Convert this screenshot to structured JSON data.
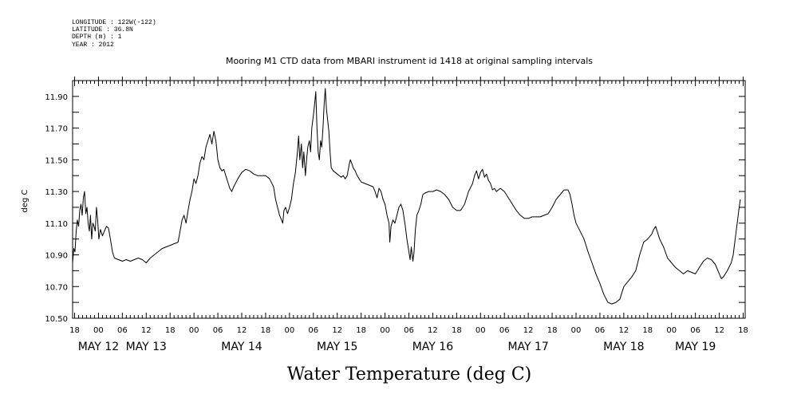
{
  "header": {
    "longitude": "LONGITUDE : 122W(-122)",
    "latitude": "LATITUDE : 36.8N",
    "depth": "DEPTH (m) : 1",
    "year": "YEAR : 2012"
  },
  "chart_data": {
    "type": "line",
    "title": "Mooring M1 CTD data from MBARI instrument id 1418 at original sampling intervals",
    "xlabel": "Water Temperature (deg C)",
    "ylabel": "deg C",
    "ylim": [
      10.5,
      12.0
    ],
    "y_ticks": [
      10.5,
      10.6,
      10.7,
      10.8,
      10.9,
      11.0,
      11.1,
      11.2,
      11.3,
      11.4,
      11.5,
      11.6,
      11.7,
      11.8,
      11.9,
      12.0
    ],
    "y_tick_labels": [
      "10.50",
      "10.70",
      "10.90",
      "11.10",
      "11.30",
      "11.50",
      "11.70",
      "11.90"
    ],
    "y_tick_label_values": [
      10.5,
      10.7,
      10.9,
      11.1,
      11.3,
      11.5,
      11.7,
      11.9
    ],
    "x_unit": "hours since May 12 00:00",
    "xlim": [
      -6.5,
      162.5
    ],
    "hour_ticks": [
      -6,
      0,
      6,
      12,
      18,
      24,
      30,
      36,
      42,
      48,
      54,
      60,
      66,
      72,
      78,
      84,
      90,
      96,
      102,
      108,
      114,
      120,
      126,
      132,
      138,
      144,
      150,
      156,
      162
    ],
    "hour_tick_labels": [
      "18",
      "00",
      "06",
      "12",
      "18",
      "00",
      "06",
      "12",
      "18",
      "00",
      "06",
      "12",
      "18",
      "00",
      "06",
      "12",
      "18",
      "00",
      "06",
      "12",
      "18",
      "00",
      "06",
      "12",
      "18",
      "00",
      "06",
      "12",
      "18"
    ],
    "date_labels": [
      {
        "label": "MAY 12",
        "hour": 0
      },
      {
        "label": "MAY 13",
        "hour": 12
      },
      {
        "label": "MAY 14",
        "hour": 36
      },
      {
        "label": "MAY 15",
        "hour": 60
      },
      {
        "label": "MAY 16",
        "hour": 84
      },
      {
        "label": "MAY 17",
        "hour": 108
      },
      {
        "label": "MAY 18",
        "hour": 132
      },
      {
        "label": "MAY 19",
        "hour": 150
      }
    ],
    "series": [
      {
        "color": "#000000",
        "points": [
          [
            -6.5,
            10.85
          ],
          [
            -6.2,
            10.94
          ],
          [
            -5.9,
            10.92
          ],
          [
            -5.6,
            11.05
          ],
          [
            -5.3,
            11.12
          ],
          [
            -5.0,
            11.08
          ],
          [
            -4.7,
            11.18
          ],
          [
            -4.4,
            11.22
          ],
          [
            -4.1,
            11.15
          ],
          [
            -3.8,
            11.26
          ],
          [
            -3.5,
            11.3
          ],
          [
            -3.2,
            11.16
          ],
          [
            -2.9,
            11.2
          ],
          [
            -2.6,
            11.1
          ],
          [
            -2.3,
            11.05
          ],
          [
            -2.0,
            11.15
          ],
          [
            -1.7,
            11.0
          ],
          [
            -1.4,
            11.1
          ],
          [
            -1.1,
            11.08
          ],
          [
            -0.8,
            11.05
          ],
          [
            -0.5,
            11.2
          ],
          [
            -0.2,
            11.12
          ],
          [
            0.1,
            11.0
          ],
          [
            0.5,
            11.06
          ],
          [
            1.0,
            11.02
          ],
          [
            1.5,
            11.05
          ],
          [
            2.0,
            11.08
          ],
          [
            2.5,
            11.07
          ],
          [
            3.0,
            11.0
          ],
          [
            3.5,
            10.92
          ],
          [
            4.0,
            10.88
          ],
          [
            5.0,
            10.87
          ],
          [
            6.0,
            10.86
          ],
          [
            7.0,
            10.87
          ],
          [
            8.0,
            10.86
          ],
          [
            9.0,
            10.87
          ],
          [
            10.0,
            10.88
          ],
          [
            11.0,
            10.87
          ],
          [
            12.0,
            10.85
          ],
          [
            13.0,
            10.88
          ],
          [
            14.0,
            10.9
          ],
          [
            15.0,
            10.92
          ],
          [
            16.0,
            10.94
          ],
          [
            17.0,
            10.95
          ],
          [
            18.0,
            10.96
          ],
          [
            19.0,
            10.97
          ],
          [
            20.0,
            10.98
          ],
          [
            20.5,
            11.05
          ],
          [
            21.0,
            11.12
          ],
          [
            21.5,
            11.15
          ],
          [
            22.0,
            11.1
          ],
          [
            22.5,
            11.18
          ],
          [
            23.0,
            11.25
          ],
          [
            23.5,
            11.3
          ],
          [
            24.0,
            11.38
          ],
          [
            24.5,
            11.35
          ],
          [
            25.0,
            11.4
          ],
          [
            25.5,
            11.48
          ],
          [
            26.0,
            11.52
          ],
          [
            26.5,
            11.5
          ],
          [
            27.0,
            11.58
          ],
          [
            27.5,
            11.62
          ],
          [
            28.0,
            11.66
          ],
          [
            28.5,
            11.6
          ],
          [
            29.0,
            11.68
          ],
          [
            29.5,
            11.62
          ],
          [
            30.0,
            11.5
          ],
          [
            30.5,
            11.45
          ],
          [
            31.0,
            11.43
          ],
          [
            31.5,
            11.44
          ],
          [
            32.0,
            11.4
          ],
          [
            32.5,
            11.36
          ],
          [
            33.0,
            11.32
          ],
          [
            33.5,
            11.3
          ],
          [
            34.0,
            11.33
          ],
          [
            35.0,
            11.38
          ],
          [
            36.0,
            11.42
          ],
          [
            37.0,
            11.44
          ],
          [
            38.0,
            11.43
          ],
          [
            39.0,
            11.41
          ],
          [
            40.0,
            11.4
          ],
          [
            41.0,
            11.4
          ],
          [
            42.0,
            11.4
          ],
          [
            43.0,
            11.38
          ],
          [
            44.0,
            11.33
          ],
          [
            44.5,
            11.25
          ],
          [
            45.0,
            11.2
          ],
          [
            45.5,
            11.15
          ],
          [
            46.0,
            11.12
          ],
          [
            46.3,
            11.1
          ],
          [
            46.6,
            11.18
          ],
          [
            47.0,
            11.2
          ],
          [
            47.5,
            11.16
          ],
          [
            48.0,
            11.2
          ],
          [
            48.5,
            11.25
          ],
          [
            49.0,
            11.35
          ],
          [
            49.5,
            11.42
          ],
          [
            50.0,
            11.55
          ],
          [
            50.3,
            11.65
          ],
          [
            50.6,
            11.5
          ],
          [
            51.0,
            11.6
          ],
          [
            51.3,
            11.45
          ],
          [
            51.6,
            11.55
          ],
          [
            52.0,
            11.4
          ],
          [
            52.3,
            11.5
          ],
          [
            52.6,
            11.58
          ],
          [
            53.0,
            11.62
          ],
          [
            53.3,
            11.55
          ],
          [
            53.6,
            11.7
          ],
          [
            54.0,
            11.78
          ],
          [
            54.3,
            11.85
          ],
          [
            54.6,
            11.93
          ],
          [
            54.9,
            11.7
          ],
          [
            55.2,
            11.55
          ],
          [
            55.5,
            11.5
          ],
          [
            55.8,
            11.62
          ],
          [
            56.1,
            11.58
          ],
          [
            56.4,
            11.7
          ],
          [
            56.7,
            11.85
          ],
          [
            57.0,
            11.95
          ],
          [
            57.3,
            11.82
          ],
          [
            57.6,
            11.75
          ],
          [
            57.9,
            11.68
          ],
          [
            58.2,
            11.55
          ],
          [
            58.5,
            11.45
          ],
          [
            59.0,
            11.43
          ],
          [
            59.5,
            11.42
          ],
          [
            60.0,
            11.41
          ],
          [
            60.5,
            11.4
          ],
          [
            61.0,
            11.39
          ],
          [
            61.5,
            11.4
          ],
          [
            62.0,
            11.38
          ],
          [
            62.5,
            11.4
          ],
          [
            63.0,
            11.47
          ],
          [
            63.3,
            11.5
          ],
          [
            63.6,
            11.48
          ],
          [
            64.0,
            11.45
          ],
          [
            64.5,
            11.43
          ],
          [
            65.0,
            11.4
          ],
          [
            66.0,
            11.36
          ],
          [
            67.0,
            11.35
          ],
          [
            68.0,
            11.34
          ],
          [
            69.0,
            11.33
          ],
          [
            69.5,
            11.3
          ],
          [
            70.0,
            11.26
          ],
          [
            70.5,
            11.32
          ],
          [
            71.0,
            11.3
          ],
          [
            71.5,
            11.25
          ],
          [
            72.0,
            11.22
          ],
          [
            72.5,
            11.15
          ],
          [
            73.0,
            11.1
          ],
          [
            73.2,
            10.98
          ],
          [
            73.5,
            11.08
          ],
          [
            74.0,
            11.12
          ],
          [
            74.5,
            11.1
          ],
          [
            75.0,
            11.15
          ],
          [
            75.5,
            11.2
          ],
          [
            76.0,
            11.22
          ],
          [
            76.5,
            11.18
          ],
          [
            77.0,
            11.1
          ],
          [
            77.5,
            11.0
          ],
          [
            78.0,
            10.92
          ],
          [
            78.3,
            10.87
          ],
          [
            78.6,
            10.95
          ],
          [
            79.0,
            10.86
          ],
          [
            79.3,
            10.92
          ],
          [
            79.6,
            11.05
          ],
          [
            80.0,
            11.15
          ],
          [
            80.5,
            11.18
          ],
          [
            81.0,
            11.22
          ],
          [
            81.5,
            11.28
          ],
          [
            82.0,
            11.29
          ],
          [
            83.0,
            11.3
          ],
          [
            84.0,
            11.3
          ],
          [
            85.0,
            11.31
          ],
          [
            86.0,
            11.3
          ],
          [
            87.0,
            11.28
          ],
          [
            88.0,
            11.25
          ],
          [
            89.0,
            11.2
          ],
          [
            90.0,
            11.18
          ],
          [
            91.0,
            11.18
          ],
          [
            92.0,
            11.22
          ],
          [
            93.0,
            11.3
          ],
          [
            94.0,
            11.35
          ],
          [
            94.5,
            11.4
          ],
          [
            95.0,
            11.43
          ],
          [
            95.5,
            11.38
          ],
          [
            96.0,
            11.42
          ],
          [
            96.5,
            11.44
          ],
          [
            97.0,
            11.39
          ],
          [
            97.5,
            11.41
          ],
          [
            98.0,
            11.37
          ],
          [
            98.5,
            11.35
          ],
          [
            99.0,
            11.31
          ],
          [
            99.5,
            11.32
          ],
          [
            100.0,
            11.3
          ],
          [
            101.0,
            11.32
          ],
          [
            102.0,
            11.3
          ],
          [
            103.0,
            11.26
          ],
          [
            104.0,
            11.22
          ],
          [
            105.0,
            11.18
          ],
          [
            106.0,
            11.15
          ],
          [
            107.0,
            11.13
          ],
          [
            108.0,
            11.13
          ],
          [
            109.0,
            11.14
          ],
          [
            110.0,
            11.14
          ],
          [
            111.0,
            11.14
          ],
          [
            112.0,
            11.15
          ],
          [
            113.0,
            11.16
          ],
          [
            114.0,
            11.2
          ],
          [
            115.0,
            11.25
          ],
          [
            116.0,
            11.28
          ],
          [
            117.0,
            11.31
          ],
          [
            118.0,
            11.31
          ],
          [
            118.5,
            11.28
          ],
          [
            119.0,
            11.22
          ],
          [
            119.5,
            11.15
          ],
          [
            120.0,
            11.1
          ],
          [
            121.0,
            11.05
          ],
          [
            122.0,
            11.0
          ],
          [
            123.0,
            10.92
          ],
          [
            124.0,
            10.85
          ],
          [
            125.0,
            10.78
          ],
          [
            126.0,
            10.72
          ],
          [
            127.0,
            10.65
          ],
          [
            128.0,
            10.6
          ],
          [
            129.0,
            10.59
          ],
          [
            130.0,
            10.6
          ],
          [
            131.0,
            10.62
          ],
          [
            132.0,
            10.7
          ],
          [
            133.0,
            10.73
          ],
          [
            134.0,
            10.76
          ],
          [
            135.0,
            10.8
          ],
          [
            136.0,
            10.9
          ],
          [
            137.0,
            10.98
          ],
          [
            138.0,
            11.0
          ],
          [
            139.0,
            11.03
          ],
          [
            139.5,
            11.06
          ],
          [
            140.0,
            11.08
          ],
          [
            140.5,
            11.04
          ],
          [
            141.0,
            11.0
          ],
          [
            142.0,
            10.95
          ],
          [
            143.0,
            10.88
          ],
          [
            144.0,
            10.85
          ],
          [
            145.0,
            10.82
          ],
          [
            146.0,
            10.8
          ],
          [
            147.0,
            10.78
          ],
          [
            148.0,
            10.8
          ],
          [
            149.0,
            10.79
          ],
          [
            150.0,
            10.78
          ],
          [
            151.0,
            10.82
          ],
          [
            152.0,
            10.86
          ],
          [
            153.0,
            10.88
          ],
          [
            154.0,
            10.87
          ],
          [
            155.0,
            10.84
          ],
          [
            156.0,
            10.78
          ],
          [
            156.5,
            10.75
          ],
          [
            157.0,
            10.76
          ],
          [
            158.0,
            10.8
          ],
          [
            159.0,
            10.85
          ],
          [
            159.5,
            10.9
          ],
          [
            160.0,
            11.0
          ],
          [
            160.5,
            11.1
          ],
          [
            161.0,
            11.2
          ],
          [
            161.3,
            11.25
          ]
        ]
      }
    ]
  }
}
